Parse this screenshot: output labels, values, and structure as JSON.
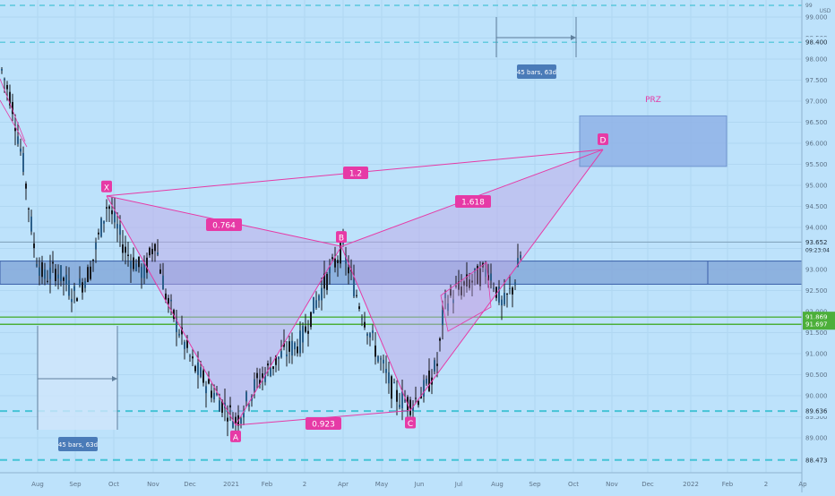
{
  "chart_data": {
    "type": "candlestick",
    "instrument_currency": "USD",
    "x_ticks": [
      "Aug",
      "Sep",
      "Oct",
      "Nov",
      "Dec",
      "2021",
      "Feb",
      "2",
      "Apr",
      "May",
      "Jun",
      "Jul",
      "Aug",
      "Sep",
      "Oct",
      "Nov",
      "Dec",
      "2022",
      "Feb",
      "2",
      "Ap"
    ],
    "y_ticks": [
      89.0,
      89.5,
      90.0,
      90.5,
      91.0,
      91.5,
      92.0,
      92.5,
      93.0,
      93.5,
      94.0,
      94.5,
      95.0,
      95.5,
      96.0,
      96.5,
      97.0,
      97.5,
      98.0,
      98.5,
      99.0
    ],
    "ylim": [
      88.3,
      99.3
    ],
    "last_price": {
      "value": "93.652",
      "countdown": "09:23:04"
    },
    "price_tags": [
      {
        "value": "98.400",
        "kind": "dashed-level"
      },
      {
        "value": "91.869",
        "kind": "support"
      },
      {
        "value": "91.697",
        "kind": "support"
      },
      {
        "value": "89.636",
        "kind": "dashed-level"
      },
      {
        "value": "88.473",
        "kind": "dashed-level"
      }
    ],
    "top_partial_tick": "99",
    "zone": {
      "low": 92.65,
      "high": 93.2
    },
    "pattern": {
      "points": [
        {
          "label": "X",
          "x": 1,
          "y": 94.75
        },
        {
          "label": "A",
          "x": 2,
          "y": 89.3
        },
        {
          "label": "B",
          "x": 3,
          "y": 93.55
        },
        {
          "label": "C",
          "x": 4,
          "y": 89.65
        },
        {
          "label": "D",
          "x": 5,
          "y": 95.85
        }
      ],
      "ratios": [
        {
          "label": "0.764",
          "between": "XA-AB"
        },
        {
          "label": "1.2",
          "between": "X-D"
        },
        {
          "label": "1.618",
          "between": "B-D"
        },
        {
          "label": "0.923",
          "between": "A-C"
        }
      ],
      "prz_label": "PRZ",
      "prz_range": [
        95.45,
        96.65
      ]
    },
    "date_range_labels": [
      "45 bars, 63d",
      "45 bars, 63d"
    ],
    "colors": {
      "background": "#bde2fb",
      "candle": "#16181d",
      "pattern": "#e63aa6",
      "pattern_fill": "#c0a8e8",
      "zone": "#7ea2d6",
      "support": "#4caf3a",
      "dashed": "#45c3d6",
      "label_box": "#4a7bb8"
    }
  }
}
